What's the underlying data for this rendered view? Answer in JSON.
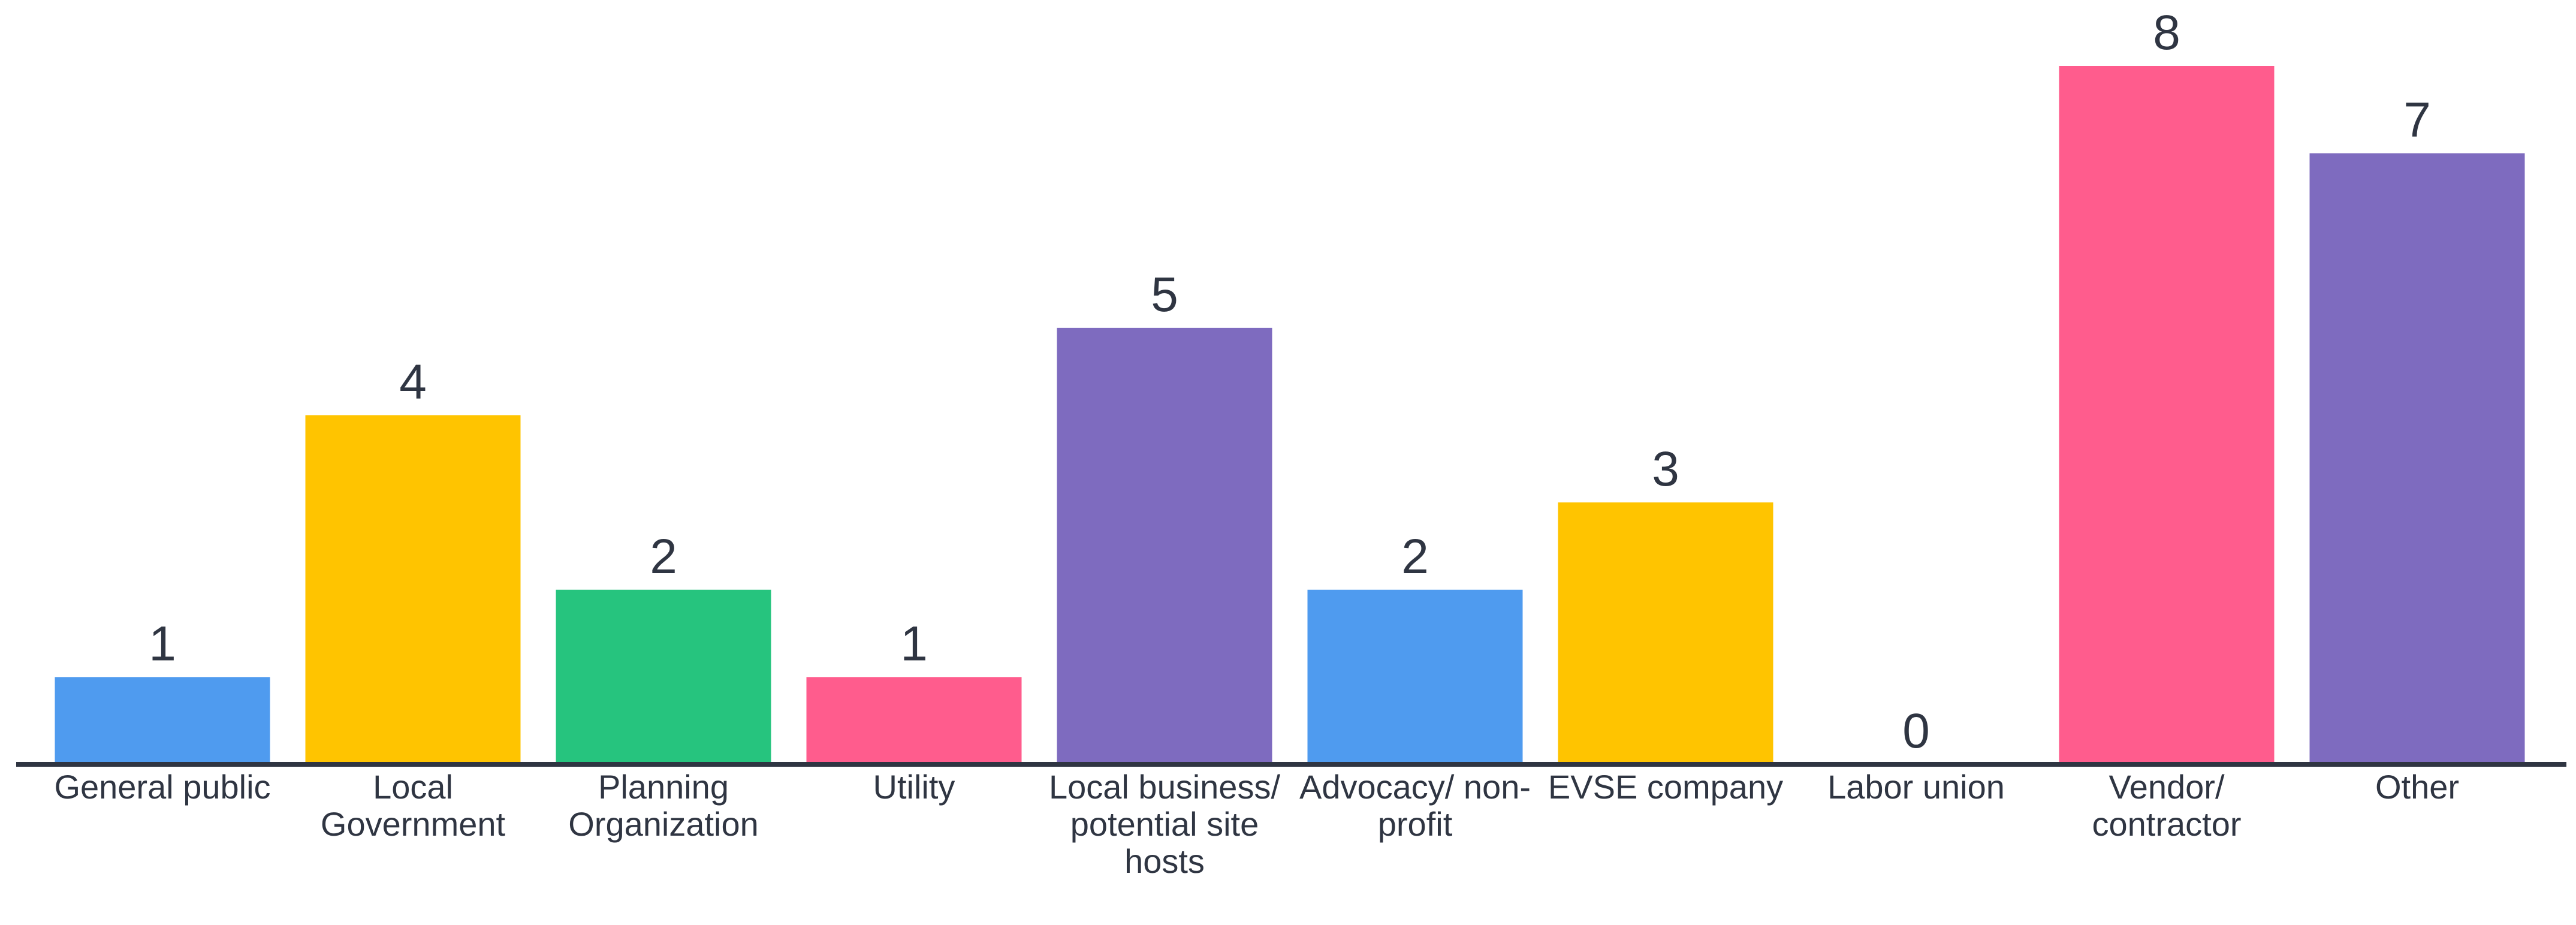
{
  "chart_data": {
    "type": "bar",
    "categories": [
      "General public",
      "Local Government",
      "Planning Organization",
      "Utility",
      "Local business/ potential site hosts",
      "Advocacy/ non-profit",
      "EVSE company",
      "Labor union",
      "Vendor/ contractor",
      "Other"
    ],
    "values": [
      1,
      4,
      2,
      1,
      5,
      2,
      3,
      0,
      8,
      7
    ],
    "colors": [
      "#4f9bef",
      "#ffc400",
      "#26c47e",
      "#ff5c8d",
      "#7e6bbf",
      "#4f9bef",
      "#ffc400",
      "#ff5c8d",
      "#ff5c8d",
      "#7e6bbf"
    ],
    "ylim": [
      0,
      8
    ]
  }
}
